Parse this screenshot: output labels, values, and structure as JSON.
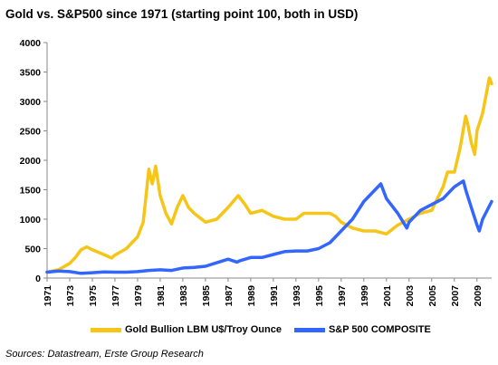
{
  "title": "Gold vs. S&P500 since 1971 (starting point 100, both in USD)",
  "source": "Sources: Datastream, Erste Group Research",
  "colors": {
    "gold": "#f5c518",
    "sp500": "#3366ff"
  },
  "chart_data": {
    "type": "line",
    "ylim": [
      0,
      4000
    ],
    "xlim": [
      1971,
      2010.3
    ],
    "y_ticks": [
      0,
      500,
      1000,
      1500,
      2000,
      2500,
      3000,
      3500,
      4000
    ],
    "x_ticks": [
      "1971",
      "1973",
      "1975",
      "1977",
      "1979",
      "1981",
      "1983",
      "1985",
      "1987",
      "1989",
      "1991",
      "1993",
      "1995",
      "1997",
      "1999",
      "2001",
      "2003",
      "2005",
      "2007",
      "2009"
    ],
    "grid": false,
    "legend_position": "bottom",
    "series": [
      {
        "name": "Gold Bullion LBM U$/Troy Ounce",
        "color": "#f5c518",
        "x": [
          1971,
          1972,
          1973,
          1973.5,
          1974,
          1974.5,
          1975,
          1976,
          1976.7,
          1977,
          1978,
          1979,
          1979.5,
          1980.0,
          1980.3,
          1980.6,
          1981,
          1981.5,
          1982,
          1982.5,
          1983,
          1983.5,
          1984,
          1985,
          1986,
          1987,
          1987.9,
          1988.5,
          1989,
          1990,
          1991,
          1992,
          1993,
          1993.7,
          1994,
          1995,
          1996,
          1996.5,
          1997,
          1998,
          1999,
          2000,
          2001,
          2002,
          2003,
          2004,
          2005,
          2006,
          2006.4,
          2007,
          2007.5,
          2008,
          2008.2,
          2008.5,
          2008.8,
          2009,
          2009.5,
          2009.9,
          2010.1,
          2010.3
        ],
        "y": [
          100,
          140,
          250,
          350,
          480,
          530,
          480,
          400,
          340,
          390,
          500,
          700,
          950,
          1850,
          1600,
          1900,
          1400,
          1100,
          920,
          1200,
          1400,
          1200,
          1100,
          950,
          1000,
          1200,
          1400,
          1250,
          1100,
          1150,
          1050,
          1000,
          1000,
          1100,
          1100,
          1100,
          1100,
          1050,
          950,
          850,
          800,
          800,
          750,
          900,
          1000,
          1100,
          1150,
          1550,
          1800,
          1800,
          2200,
          2750,
          2600,
          2300,
          2100,
          2500,
          2800,
          3200,
          3400,
          3300
        ]
      },
      {
        "name": "S&P 500 COMPOSITE",
        "color": "#3366ff",
        "x": [
          1971,
          1972,
          1973,
          1974,
          1975,
          1976,
          1977,
          1978,
          1979,
          1980,
          1981,
          1982,
          1983,
          1984,
          1985,
          1986,
          1987,
          1987.8,
          1988,
          1989,
          1990,
          1991,
          1992,
          1993,
          1994,
          1995,
          1996,
          1997,
          1998,
          1999,
          2000,
          2000.5,
          2001,
          2002,
          2002.8,
          2003,
          2004,
          2005,
          2006,
          2007,
          2007.8,
          2008,
          2008.5,
          2009.0,
          2009.2,
          2009.5,
          2010.3
        ],
        "y": [
          100,
          120,
          110,
          80,
          90,
          105,
          100,
          100,
          110,
          130,
          140,
          130,
          170,
          180,
          200,
          260,
          320,
          270,
          290,
          350,
          350,
          400,
          450,
          460,
          460,
          500,
          600,
          800,
          1000,
          1300,
          1500,
          1600,
          1350,
          1100,
          850,
          950,
          1150,
          1250,
          1350,
          1550,
          1650,
          1500,
          1200,
          900,
          800,
          1000,
          1300
        ]
      }
    ]
  }
}
